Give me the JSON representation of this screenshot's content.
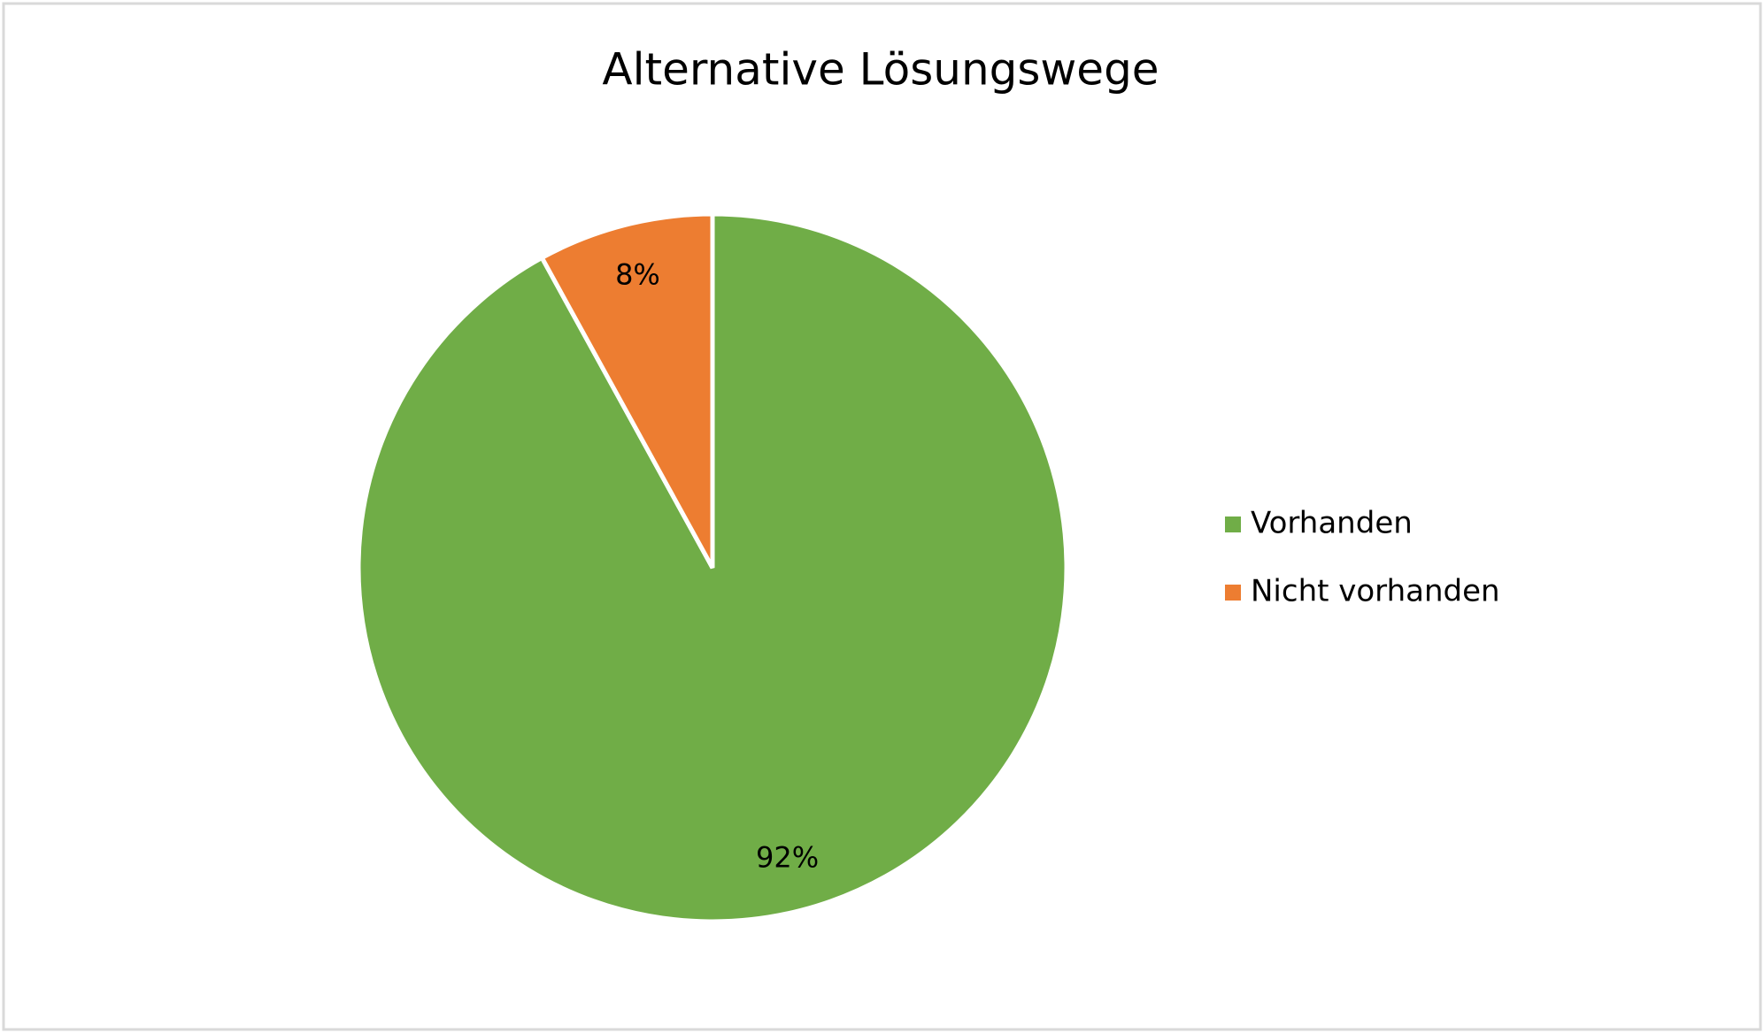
{
  "chart_data": {
    "type": "pie",
    "title": "Alternative Lösungswege",
    "categories": [
      "Vorhanden",
      "Nicht vorhanden"
    ],
    "values": [
      92,
      8
    ],
    "value_labels": [
      "92%",
      "8%"
    ],
    "colors": [
      "#70ad47",
      "#ed7d31"
    ],
    "legend": "right"
  }
}
